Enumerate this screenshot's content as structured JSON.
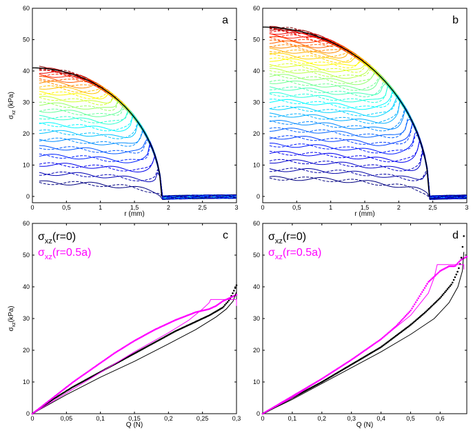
{
  "colors": {
    "measured": "#000000",
    "model": "#000000",
    "offcenter": "#ff00ff"
  },
  "chart_data": [
    {
      "type": "line",
      "panel": "a",
      "xlabel": "r (mm)",
      "ylabel": "σxz (kPa)",
      "ylabel_main": "σ",
      "ylabel_sub": "xz",
      "ylabel_unit": " (kPa)",
      "xlim": [
        0,
        3
      ],
      "ylim": [
        -2,
        60
      ],
      "xticks": [
        0,
        0.5,
        1,
        1.5,
        2,
        2.5,
        3
      ],
      "xtick_labels": [
        "0",
        "0,5",
        "1",
        "1,5",
        "2",
        "2,5",
        "3"
      ],
      "yticks": [
        0,
        10,
        20,
        30,
        40,
        50,
        60
      ],
      "ytick_labels": [
        "0",
        "10",
        "20",
        "30",
        "40",
        "50",
        "60"
      ],
      "grid": false,
      "legend": "none",
      "family": {
        "count": 20,
        "peak_start": 41,
        "contact_radius": 1.9,
        "colormap": "jet"
      }
    },
    {
      "type": "line",
      "panel": "b",
      "xlabel": "r (mm)",
      "ylabel": "",
      "xlim": [
        0,
        3
      ],
      "ylim": [
        -2,
        60
      ],
      "xticks": [
        0,
        0.5,
        1,
        1.5,
        2,
        2.5,
        3
      ],
      "xtick_labels": [
        "0",
        "0,5",
        "1",
        "1,5",
        "2",
        "2,5",
        "3"
      ],
      "yticks": [
        0,
        10,
        20,
        30,
        40,
        50,
        60
      ],
      "ytick_labels": [
        "0",
        "10",
        "20",
        "30",
        "40",
        "50",
        "60"
      ],
      "grid": false,
      "legend": "none",
      "family": {
        "count": 28,
        "peak_start": 54,
        "contact_radius": 2.45,
        "colormap": "jet"
      }
    },
    {
      "type": "scatter",
      "panel": "c",
      "xlabel": "Q (N)",
      "ylabel": "σxz(kPa)",
      "ylabel_main": "σ",
      "ylabel_sub": "xz",
      "ylabel_unit": "(kPa)",
      "xlim": [
        0,
        0.3
      ],
      "ylim": [
        0,
        60
      ],
      "xticks": [
        0,
        0.05,
        0.1,
        0.15,
        0.2,
        0.25,
        0.3
      ],
      "xtick_labels": [
        "0",
        "0,05",
        "0,1",
        "0,15",
        "0,2",
        "0,25",
        "0,3"
      ],
      "yticks": [
        0,
        10,
        20,
        30,
        40,
        50,
        60
      ],
      "ytick_labels": [
        "0",
        "10",
        "20",
        "30",
        "40",
        "50",
        "60"
      ],
      "grid": false,
      "legend": "top-left",
      "legend_entries": [
        {
          "main": "σ",
          "sub": "xz",
          "rest": "(r=0)",
          "color": "#000000"
        },
        {
          "main": "σ",
          "sub": "xz",
          "rest": "(r=0.5a)",
          "color": "#ff00ff"
        }
      ],
      "series": [
        {
          "name": "σxz(r=0)",
          "style": "points",
          "color": "#000000",
          "x": [
            0,
            0.03,
            0.06,
            0.09,
            0.12,
            0.15,
            0.18,
            0.21,
            0.24,
            0.26,
            0.28,
            0.29,
            0.3
          ],
          "y": [
            0,
            4.5,
            8.5,
            12,
            15.5,
            19,
            22.5,
            26,
            29,
            31,
            33.5,
            36,
            40.5
          ]
        },
        {
          "name": "σxz(r=0.5a)",
          "style": "points",
          "color": "#ff00ff",
          "x": [
            0,
            0.03,
            0.06,
            0.09,
            0.12,
            0.15,
            0.18,
            0.21,
            0.24,
            0.26,
            0.27,
            0.28,
            0.29,
            0.3
          ],
          "y": [
            0,
            5,
            10,
            14.5,
            19,
            23,
            26.5,
            29.5,
            32,
            33,
            34,
            35.5,
            36.5,
            37.5
          ]
        },
        {
          "name": "",
          "style": "line",
          "color": "#000000",
          "x": [
            0,
            0.05,
            0.1,
            0.15,
            0.2,
            0.24,
            0.27,
            0.285,
            0.295,
            0.3
          ],
          "y": [
            0,
            6,
            11.5,
            16.5,
            22,
            26.5,
            30.5,
            33,
            35.5,
            38.5
          ]
        },
        {
          "name": "",
          "style": "line",
          "color": "#ff00ff",
          "x": [
            0,
            0.05,
            0.1,
            0.15,
            0.2,
            0.23,
            0.25,
            0.26,
            0.262,
            0.3,
            0.3
          ],
          "y": [
            0,
            6.5,
            13,
            19.5,
            25.5,
            29.5,
            33,
            35,
            36,
            36,
            34
          ]
        }
      ]
    },
    {
      "type": "scatter",
      "panel": "d",
      "xlabel": "Q (N)",
      "ylabel": "",
      "xlim": [
        0,
        0.69
      ],
      "ylim": [
        0,
        60
      ],
      "xticks": [
        0,
        0.1,
        0.2,
        0.3,
        0.4,
        0.5,
        0.6
      ],
      "xtick_labels": [
        "0",
        "0,1",
        "0,2",
        "0,3",
        "0,4",
        "0,5",
        "0,6"
      ],
      "yticks": [
        0,
        10,
        20,
        30,
        40,
        50,
        60
      ],
      "ytick_labels": [
        "0",
        "10",
        "20",
        "30",
        "40",
        "50",
        "60"
      ],
      "grid": false,
      "legend": "top-left",
      "legend_entries": [
        {
          "main": "σ",
          "sub": "xz",
          "rest": "(r=0)",
          "color": "#000000"
        },
        {
          "main": "σ",
          "sub": "xz",
          "rest": "(r=0.5a)",
          "color": "#ff00ff"
        }
      ],
      "series": [
        {
          "name": "σxz(r=0)",
          "style": "points",
          "color": "#000000",
          "x": [
            0,
            0.1,
            0.2,
            0.3,
            0.4,
            0.5,
            0.55,
            0.6,
            0.64,
            0.66,
            0.67,
            0.675,
            0.68
          ],
          "y": [
            0,
            5,
            10,
            15.5,
            21,
            28,
            32,
            36.5,
            41,
            45,
            48,
            52,
            56
          ]
        },
        {
          "name": "σxz(r=0.5a)",
          "style": "points",
          "color": "#ff00ff",
          "x": [
            0,
            0.1,
            0.2,
            0.3,
            0.4,
            0.45,
            0.5,
            0.53,
            0.56,
            0.6,
            0.63,
            0.65,
            0.67,
            0.69
          ],
          "y": [
            0,
            5.5,
            11,
            17,
            23.5,
            27.5,
            32.5,
            37,
            41.5,
            45,
            46.5,
            46.5,
            48.5,
            49.5
          ]
        },
        {
          "name": "",
          "style": "line",
          "color": "#000000",
          "x": [
            0,
            0.1,
            0.2,
            0.3,
            0.4,
            0.5,
            0.58,
            0.63,
            0.66,
            0.675,
            0.68
          ],
          "y": [
            0,
            4.5,
            9.5,
            14.5,
            19.5,
            25,
            30,
            35,
            40,
            45,
            51
          ]
        },
        {
          "name": "",
          "style": "line",
          "color": "#ff00ff",
          "x": [
            0,
            0.1,
            0.2,
            0.3,
            0.4,
            0.5,
            0.56,
            0.58,
            0.59,
            0.68,
            0.68
          ],
          "y": [
            0,
            5,
            11,
            17,
            23.5,
            31,
            38,
            43,
            47,
            47,
            45.5
          ]
        }
      ]
    }
  ]
}
